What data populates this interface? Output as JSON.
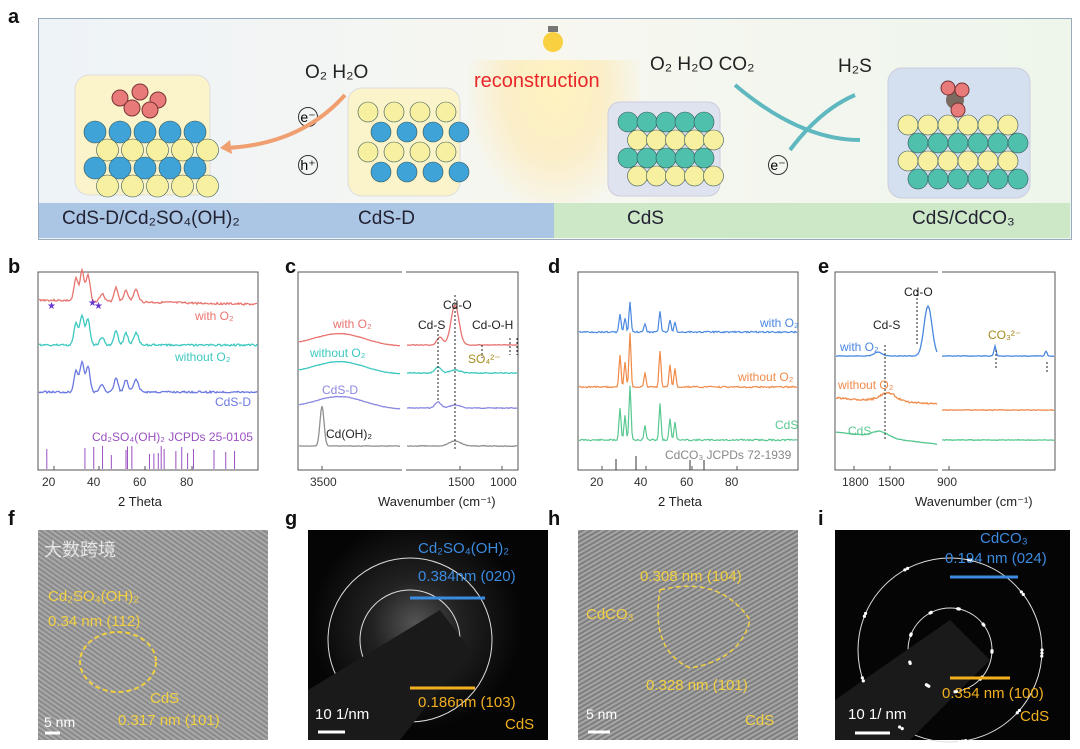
{
  "panel_labels": {
    "a": "a",
    "b": "b",
    "c": "c",
    "d": "d",
    "e": "e",
    "f": "f",
    "g": "g",
    "h": "h",
    "i": "i"
  },
  "panel_a": {
    "left_reactants": "O₂ H₂O",
    "electron": "e⁻",
    "hole": "h⁺",
    "center_label": "reconstruction",
    "right_reactants": "O₂ H₂O  CO₂",
    "product": "H₂S",
    "electron_right": "e⁻",
    "bands": [
      "CdS-D/Cd₂SO₄(OH)₂",
      "CdS-D",
      "CdS",
      "CdS/CdCO₃"
    ],
    "colors": {
      "left_band": "#a9c4e4",
      "right_band": "#cfe9c8",
      "cd": "#3fa3d8",
      "s": "#f7f0a0",
      "cds_cd": "#4fc0ab",
      "o": "#e87a7a",
      "arrow_left": "#f0a070",
      "arrow_right": "#5fb8c0"
    }
  },
  "chart_data": [
    {
      "panel": "b",
      "type": "line",
      "xlabel": "2 Theta",
      "xticks": [
        "20",
        "40",
        "60",
        "80"
      ],
      "xlim": [
        15,
        90
      ],
      "series": [
        {
          "name": "with O₂",
          "color": "#e87470"
        },
        {
          "name": "without O₂",
          "color": "#3cc8c0"
        },
        {
          "name": "CdS-D",
          "color": "#6a78e0"
        }
      ],
      "reference": "Cd₂SO₄(OH)₂ JCPDs 25-0105",
      "ref_color": "#9a50c0",
      "ref_peaks": [
        18,
        31,
        34,
        37,
        40,
        45,
        45.5,
        47,
        53,
        54.5,
        56,
        57,
        58,
        62,
        64,
        66,
        68,
        75,
        79,
        82
      ]
    },
    {
      "panel": "c",
      "type": "line",
      "xlabel": "Wavenumber (cm⁻¹)",
      "xticks": [
        "3500",
        "1500",
        "1000"
      ],
      "series": [
        {
          "name": "with O₂",
          "color": "#e87470"
        },
        {
          "name": "without O₂",
          "color": "#3cc8c0"
        },
        {
          "name": "CdS-D",
          "color": "#8a88e0"
        },
        {
          "name": "Cd(OH)₂",
          "color": "#909090"
        }
      ],
      "annotations": [
        "Cd-S",
        "Cd-O",
        "Cd-O-H",
        "SO₄²⁻"
      ]
    },
    {
      "panel": "d",
      "type": "line",
      "xlabel": "2 Theta",
      "xticks": [
        "20",
        "40",
        "60",
        "80"
      ],
      "xlim": [
        10,
        90
      ],
      "series": [
        {
          "name": "with O₂",
          "color": "#4a88e0"
        },
        {
          "name": "without O₂",
          "color": "#f08a48"
        },
        {
          "name": "CdS",
          "color": "#58c890"
        }
      ],
      "reference": "CdCO₃ JCPDs 72-1939"
    },
    {
      "panel": "e",
      "type": "line",
      "xlabel": "Wavenumber (cm⁻¹)",
      "xticks": [
        "1800",
        "1500",
        "900"
      ],
      "series": [
        {
          "name": "with O₂",
          "color": "#4a88e0"
        },
        {
          "name": "without O₂",
          "color": "#f08a48"
        },
        {
          "name": "CdS",
          "color": "#58c890"
        }
      ],
      "annotations": [
        "Cd-O",
        "Cd-S",
        "CO₃²⁻"
      ]
    }
  ],
  "panel_f": {
    "phase": "Cd₂SO₄(OH)₂",
    "d1": "0.34 nm (112)",
    "phase2": "CdS",
    "d2": "0.317 nm (101)",
    "scale": "5 nm"
  },
  "panel_g": {
    "phase": "Cd₂SO₄(OH)₂",
    "d1": "0.384nm (020)",
    "d2": "0.186nm (103)",
    "phase2": "CdS",
    "scale": "10 1/nm"
  },
  "panel_h": {
    "d1": "0.308 nm (104)",
    "phase": "CdCO₃",
    "d2": "0.328 nm (101)",
    "phase2": "CdS",
    "scale": "5 nm"
  },
  "panel_i": {
    "phase": "CdCO₃",
    "d1": "0.194 nm (024)",
    "d2": "0.354 nm (100)",
    "phase2": "CdS",
    "scale": "10 1/ nm"
  },
  "watermark": "大数跨境"
}
